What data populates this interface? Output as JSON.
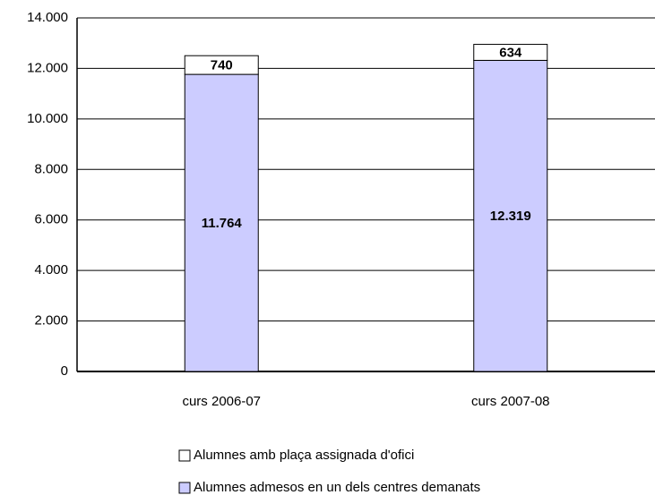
{
  "chart_data": {
    "type": "stacked_bar",
    "categories": [
      "curs 2006-07",
      "curs 2007-08"
    ],
    "series": [
      {
        "name": "Alumnes admesos en un dels centres demanats",
        "color": "#ccccff",
        "values": [
          11764,
          12319
        ],
        "value_labels": [
          "11.764",
          "12.319"
        ]
      },
      {
        "name": "Alumnes amb plaça assignada d'ofici",
        "color": "#ffffff",
        "values": [
          740,
          634
        ]
      }
    ],
    "ylim": [
      0,
      14000
    ],
    "yticks": [
      0,
      {
        "value": 2000,
        "label": "2.000"
      },
      {
        "value": 4000,
        "label": "4.000"
      },
      {
        "value": 6000,
        "label": "6.000"
      },
      {
        "value": 8000,
        "label": "8.000"
      },
      {
        "value": 10000,
        "label": "10.000"
      },
      {
        "value": 12000,
        "label": "12.000"
      },
      {
        "value": 14000,
        "label": "14.000"
      }
    ],
    "grid": true
  }
}
